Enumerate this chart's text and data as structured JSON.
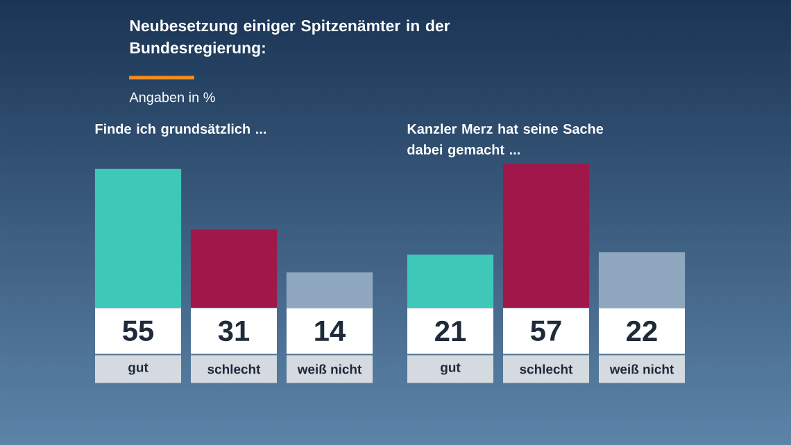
{
  "chart_data": [
    {
      "type": "other",
      "title": "Neubesetzung einiger Spitzenämter in der Bundesregierung:",
      "subtitle": "Angaben in %"
    },
    {
      "type": "bar",
      "title": "Finde ich grundsätzlich ...",
      "categories": [
        "gut",
        "schlecht",
        "weiß nicht"
      ],
      "values": [
        55,
        31,
        14
      ],
      "colors": [
        "#3ec8b8",
        "#a0174a",
        "#8fa8c0"
      ],
      "data_labels": true
    },
    {
      "type": "bar",
      "title": "Kanzler Merz hat seine Sache dabei gemacht ...",
      "categories": [
        "gut",
        "schlecht",
        "weiß nicht"
      ],
      "values": [
        21,
        57,
        22
      ],
      "colors": [
        "#3ec8b8",
        "#a0174a",
        "#8fa8c0"
      ],
      "data_labels": true
    }
  ]
}
